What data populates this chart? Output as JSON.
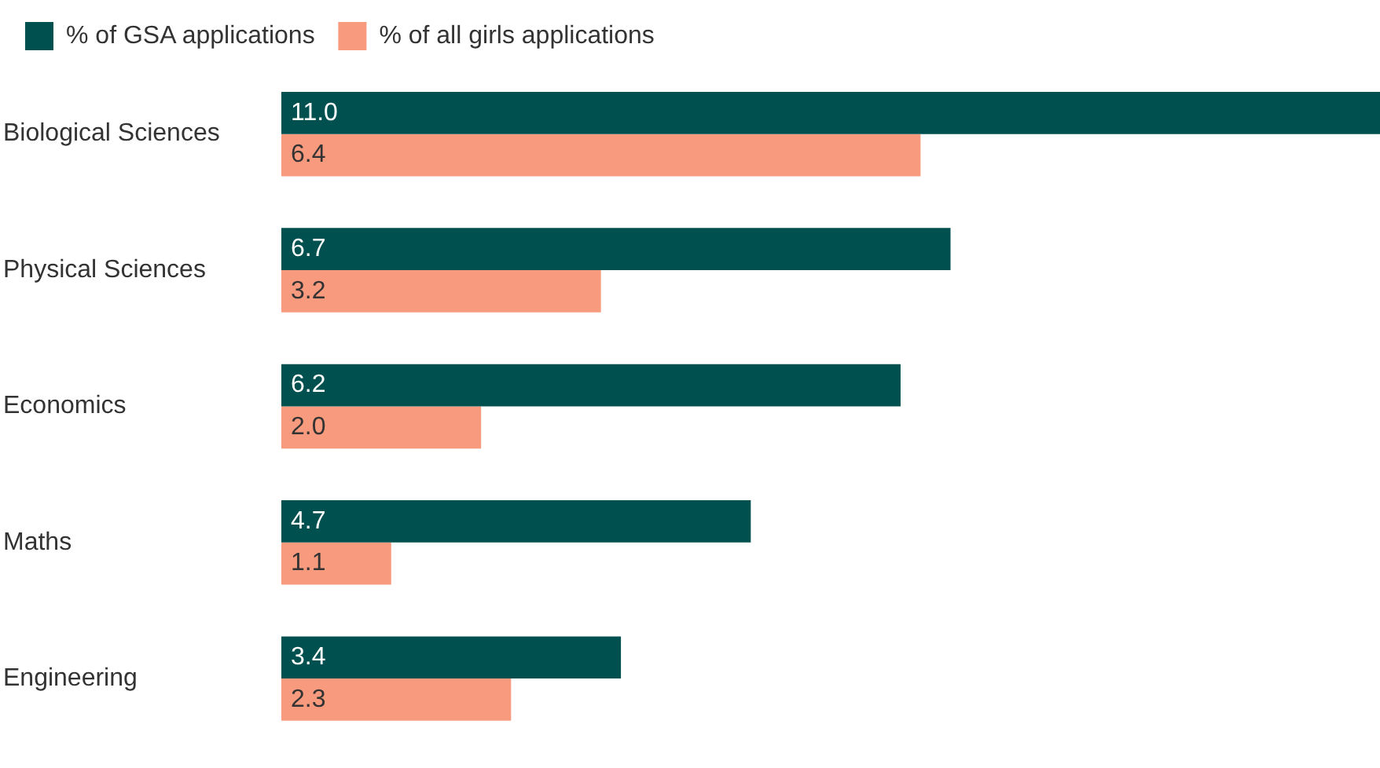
{
  "chart_data": {
    "type": "bar",
    "orientation": "horizontal",
    "categories": [
      "Biological Sciences",
      "Physical Sciences",
      "Economics",
      "Maths",
      "Engineering"
    ],
    "series": [
      {
        "name": "% of GSA applications",
        "color": "#00504f",
        "values": [
          11.0,
          6.7,
          6.2,
          4.7,
          3.4
        ],
        "value_labels": [
          "11.0",
          "6.7",
          "6.2",
          "4.7",
          "3.4"
        ]
      },
      {
        "name": "% of all girls applications",
        "color": "#f89a7d",
        "values": [
          6.4,
          3.2,
          2.0,
          1.1,
          2.3
        ],
        "value_labels": [
          "6.4",
          "3.2",
          "2.0",
          "1.1",
          "2.3"
        ]
      }
    ],
    "legend": "top left"
  }
}
